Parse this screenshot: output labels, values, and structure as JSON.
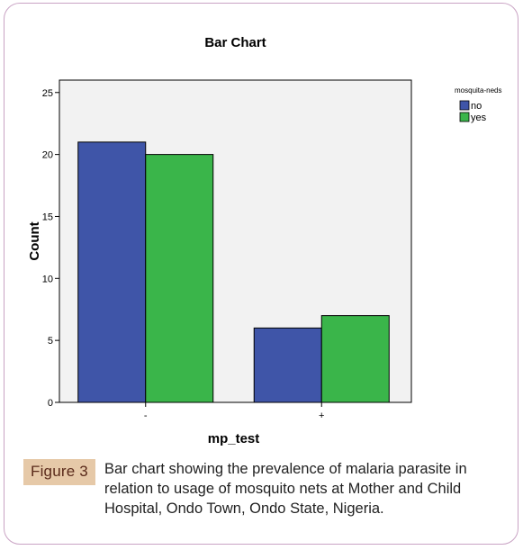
{
  "figure": {
    "badge": "Figure 3",
    "caption": "Bar chart showing the prevalence of malaria parasite in relation to usage of mosquito nets at Mother and Child Hospital, Ondo Town, Ondo State, Nigeria."
  },
  "chart_data": {
    "type": "bar",
    "title": "Bar Chart",
    "xlabel": "mp_test",
    "ylabel": "Count",
    "categories": [
      "-",
      "+"
    ],
    "series": [
      {
        "name": "no",
        "values": [
          21,
          6
        ],
        "color": "#3f55a8"
      },
      {
        "name": "yes",
        "values": [
          20,
          7
        ],
        "color": "#3ab54a"
      }
    ],
    "ylim": [
      0,
      26
    ],
    "yticks": [
      0,
      5,
      10,
      15,
      20,
      25
    ],
    "legend": {
      "title": "mosquita-neds",
      "position": "right"
    },
    "plot_background": "#f2f2f2",
    "grid": false
  }
}
